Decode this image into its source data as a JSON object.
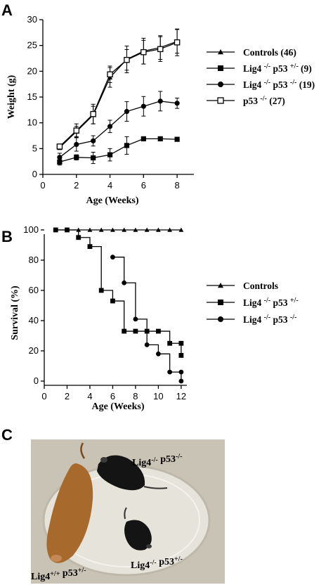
{
  "panels": {
    "a": "A",
    "b": "B",
    "c": "C"
  },
  "chart_data": [
    {
      "type": "line",
      "xlabel": "Age (Weeks)",
      "ylabel": "Weight (g)",
      "xlim": [
        0,
        9
      ],
      "ylim": [
        0,
        30
      ],
      "xticks": [
        0,
        2,
        4,
        6,
        8
      ],
      "yticks": [
        0,
        5,
        10,
        15,
        20,
        25,
        30
      ],
      "x": [
        1,
        2,
        3,
        4,
        5,
        6,
        7,
        8
      ],
      "legend_position": "right",
      "series": [
        {
          "name": "Controls (46)",
          "marker": "triangle",
          "values": [
            5.2,
            8.3,
            11.5,
            18.8,
            22.3,
            23.9,
            24.6,
            25.8
          ],
          "errors": [
            0.4,
            1.0,
            1.7,
            1.9,
            2.6,
            2.5,
            2.3,
            2.3
          ]
        },
        {
          "name": "Lig4 -/- p53+/- (9)",
          "marker": "square",
          "values": [
            2.4,
            3.3,
            3.2,
            3.8,
            5.6,
            6.9,
            6.9,
            6.8
          ],
          "errors": [
            0.6,
            0.5,
            1.1,
            1.2,
            1.7,
            0.2,
            0.2,
            0.2
          ]
        },
        {
          "name": "Lig4 -/- p53-/- (19)",
          "marker": "circle",
          "values": [
            3.3,
            5.8,
            6.5,
            9.3,
            12.2,
            13.2,
            14.2,
            13.8
          ],
          "errors": [
            0.8,
            1.3,
            1.0,
            1.2,
            1.9,
            1.9,
            1.9,
            1.0
          ]
        },
        {
          "name": "p53-/- (27)",
          "marker": "open-square",
          "values": [
            5.4,
            8.5,
            11.7,
            19.4,
            22.2,
            23.7,
            24.3,
            25.6
          ],
          "errors": [
            0.4,
            1.3,
            1.9,
            1.6,
            2.0,
            2.3,
            2.4,
            2.6
          ]
        }
      ]
    },
    {
      "type": "line",
      "step": true,
      "xlabel": "Age (Weeks)",
      "ylabel": "Survival (%)",
      "xlim": [
        0,
        12.5
      ],
      "ylim": [
        0,
        100
      ],
      "xticks": [
        0,
        2,
        4,
        6,
        8,
        10,
        12
      ],
      "yticks": [
        0,
        20,
        40,
        60,
        80,
        100
      ],
      "legend_position": "right",
      "series": [
        {
          "name": "Controls",
          "marker": "triangle",
          "x": [
            1,
            2,
            3,
            4,
            5,
            6,
            7,
            8,
            9,
            10,
            11,
            12
          ],
          "values": [
            100,
            100,
            100,
            100,
            100,
            100,
            100,
            100,
            100,
            100,
            100,
            100
          ]
        },
        {
          "name": "Lig4 -/- p53+/-",
          "marker": "square",
          "x": [
            1,
            2,
            3,
            4,
            5,
            6,
            7,
            8,
            9,
            10,
            11,
            12,
            12
          ],
          "values": [
            100,
            100,
            95,
            89,
            60,
            53,
            33,
            33,
            33,
            33,
            25,
            25,
            17
          ]
        },
        {
          "name": "Lig4 -/- p53-/-",
          "marker": "circle",
          "x": [
            6,
            7,
            8,
            9,
            10,
            11,
            12,
            12
          ],
          "values": [
            82,
            65,
            41,
            24,
            18,
            6,
            6,
            0
          ]
        }
      ]
    }
  ],
  "photo": {
    "labels": {
      "top": "Lig4-/- p53-/-",
      "left": "Lig4+/+ p53+/-",
      "right": "Lig4-/- p53+/-"
    },
    "colors": {
      "background": "#c9c3b6",
      "dish": "#e6e3da",
      "brown_mouse": "#a86a2c",
      "black_mouse": "#141414"
    }
  }
}
